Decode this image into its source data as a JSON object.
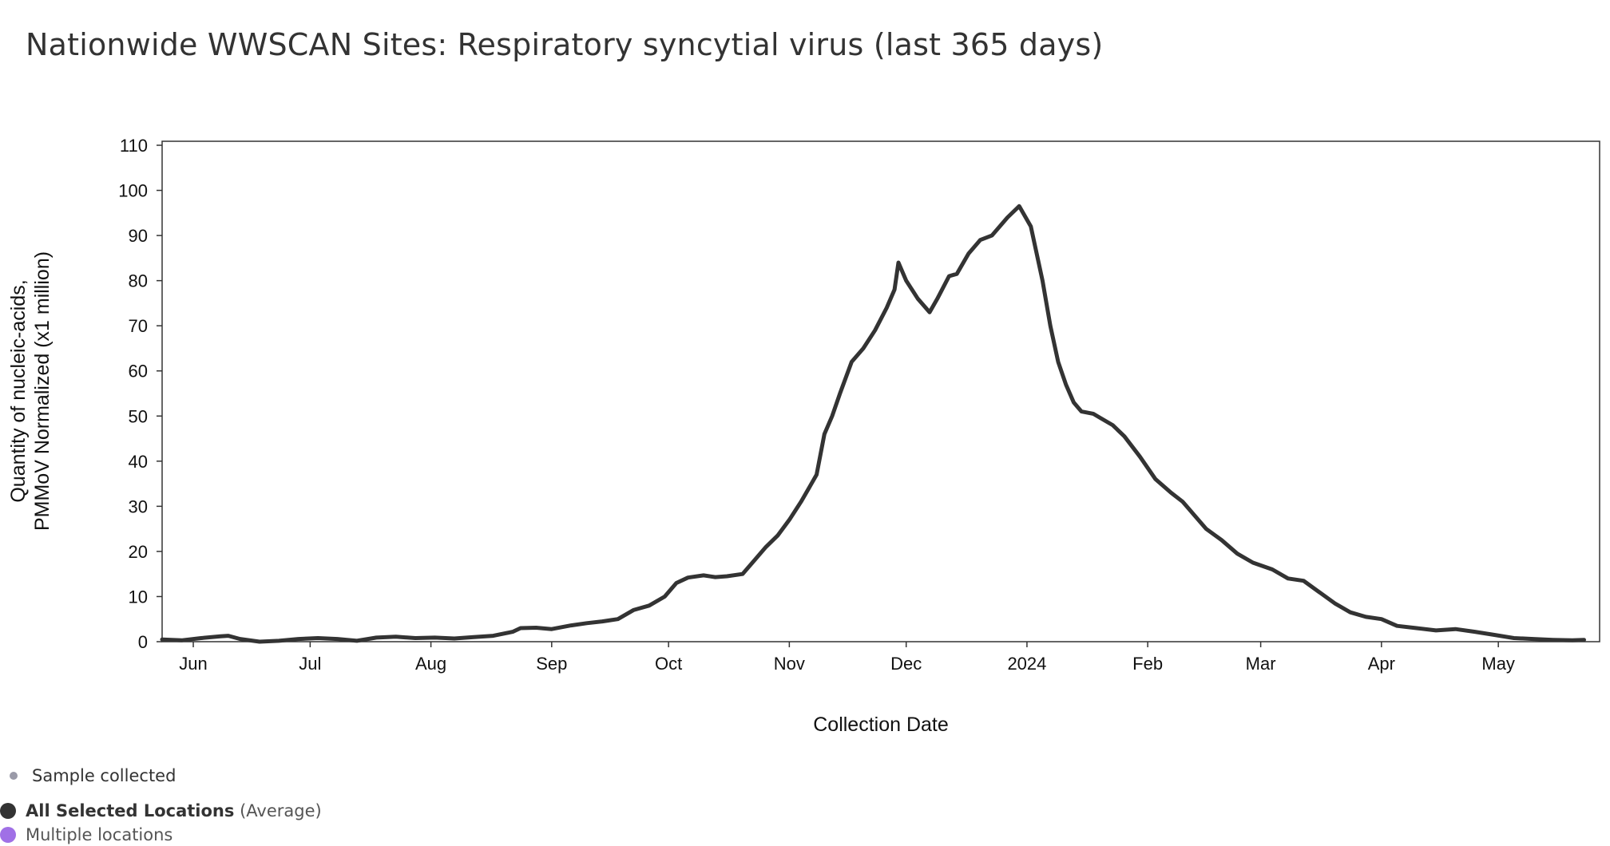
{
  "page": {
    "title": "Nationwide WWSCAN Sites: Respiratory syncytial virus (last 365 days)"
  },
  "legend": {
    "sample_collected": {
      "label": "Sample collected",
      "color": "#9a9aa8"
    },
    "all_locations": {
      "label_bold": "All Selected Locations",
      "label_suffix": " (Average)",
      "color": "#333333"
    },
    "multiple_locations": {
      "label": "Multiple locations",
      "color": "#a070e6"
    }
  },
  "chart_data": {
    "type": "line",
    "title": "Nationwide WWSCAN Sites: Respiratory syncytial virus (last 365 days)",
    "xlabel": "Collection Date",
    "ylabel_line1": "Quantity of nucleic-acids,",
    "ylabel_line2": "PMMoV Normalized (x1 million)",
    "ylim": [
      0,
      110
    ],
    "xlim": [
      "2023-05-24",
      "2024-05-27"
    ],
    "yticks": [
      0,
      10,
      20,
      30,
      40,
      50,
      60,
      70,
      80,
      90,
      100,
      110
    ],
    "xticks": [
      {
        "date": "2023-06-01",
        "label": "Jun"
      },
      {
        "date": "2023-07-01",
        "label": "Jul"
      },
      {
        "date": "2023-08-01",
        "label": "Aug"
      },
      {
        "date": "2023-09-01",
        "label": "Sep"
      },
      {
        "date": "2023-10-01",
        "label": "Oct"
      },
      {
        "date": "2023-11-01",
        "label": "Nov"
      },
      {
        "date": "2023-12-01",
        "label": "Dec"
      },
      {
        "date": "2024-01-01",
        "label": "2024"
      },
      {
        "date": "2024-02-01",
        "label": "Feb"
      },
      {
        "date": "2024-03-01",
        "label": "Mar"
      },
      {
        "date": "2024-04-01",
        "label": "Apr"
      },
      {
        "date": "2024-05-01",
        "label": "May"
      }
    ],
    "series": [
      {
        "name": "All Selected Locations",
        "color": "#333333",
        "x": [
          "2023-05-24",
          "2023-05-29",
          "2023-06-03",
          "2023-06-08",
          "2023-06-10",
          "2023-06-13",
          "2023-06-18",
          "2023-06-23",
          "2023-06-28",
          "2023-07-03",
          "2023-07-08",
          "2023-07-13",
          "2023-07-18",
          "2023-07-23",
          "2023-07-28",
          "2023-08-02",
          "2023-08-07",
          "2023-08-12",
          "2023-08-17",
          "2023-08-22",
          "2023-08-24",
          "2023-08-28",
          "2023-09-01",
          "2023-09-06",
          "2023-09-10",
          "2023-09-14",
          "2023-09-18",
          "2023-09-22",
          "2023-09-26",
          "2023-09-30",
          "2023-10-03",
          "2023-10-06",
          "2023-10-10",
          "2023-10-13",
          "2023-10-16",
          "2023-10-20",
          "2023-10-23",
          "2023-10-26",
          "2023-10-29",
          "2023-11-01",
          "2023-11-04",
          "2023-11-06",
          "2023-11-08",
          "2023-11-10",
          "2023-11-12",
          "2023-11-14",
          "2023-11-17",
          "2023-11-20",
          "2023-11-23",
          "2023-11-26",
          "2023-11-28",
          "2023-11-29",
          "2023-12-01",
          "2023-12-04",
          "2023-12-07",
          "2023-12-09",
          "2023-12-12",
          "2023-12-14",
          "2023-12-17",
          "2023-12-20",
          "2023-12-23",
          "2023-12-27",
          "2023-12-30",
          "2024-01-02",
          "2024-01-05",
          "2024-01-07",
          "2024-01-09",
          "2024-01-11",
          "2024-01-13",
          "2024-01-15",
          "2024-01-18",
          "2024-01-20",
          "2024-01-23",
          "2024-01-26",
          "2024-01-30",
          "2024-02-03",
          "2024-02-07",
          "2024-02-10",
          "2024-02-13",
          "2024-02-16",
          "2024-02-20",
          "2024-02-24",
          "2024-02-28",
          "2024-03-04",
          "2024-03-08",
          "2024-03-12",
          "2024-03-16",
          "2024-03-20",
          "2024-03-24",
          "2024-03-28",
          "2024-04-01",
          "2024-04-05",
          "2024-04-10",
          "2024-04-15",
          "2024-04-20",
          "2024-04-25",
          "2024-04-30",
          "2024-05-05",
          "2024-05-10",
          "2024-05-15",
          "2024-05-20",
          "2024-05-23"
        ],
        "values": [
          0.5,
          0.3,
          0.8,
          1.2,
          1.3,
          0.6,
          0.0,
          0.2,
          0.6,
          0.8,
          0.6,
          0.2,
          0.9,
          1.1,
          0.8,
          0.9,
          0.7,
          1.0,
          1.3,
          2.2,
          3.0,
          3.1,
          2.8,
          3.6,
          4.1,
          4.5,
          5.0,
          7.0,
          8.0,
          10.0,
          13.0,
          14.2,
          14.7,
          14.3,
          14.5,
          15.0,
          18.0,
          21.0,
          23.5,
          27.0,
          31.0,
          34.0,
          37.0,
          46.0,
          50.0,
          55.0,
          62.0,
          65.0,
          69.0,
          74.0,
          78.0,
          84.0,
          80.0,
          76.0,
          73.0,
          76.0,
          81.0,
          81.5,
          86.0,
          89.0,
          90.0,
          94.0,
          96.5,
          92.0,
          80.0,
          70.0,
          62.0,
          57.0,
          53.0,
          51.0,
          50.5,
          49.5,
          48.0,
          45.5,
          41.0,
          36.0,
          33.0,
          31.0,
          28.0,
          25.0,
          22.5,
          19.5,
          17.5,
          16.0,
          14.0,
          13.5,
          11.0,
          8.5,
          6.5,
          5.5,
          5.0,
          3.5,
          3.0,
          2.5,
          2.8,
          2.2,
          1.5,
          0.8,
          0.6,
          0.4,
          0.3,
          0.4
        ]
      }
    ],
    "grid": false,
    "legend_position": "bottom-left"
  }
}
